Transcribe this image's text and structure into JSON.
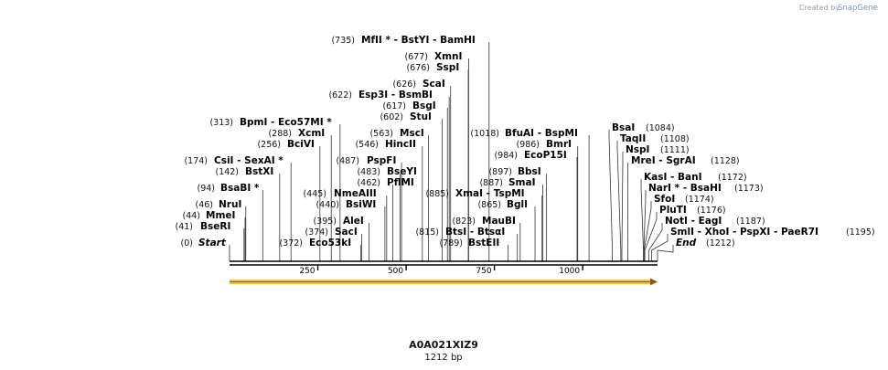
{
  "credit": {
    "prefix": "Created by",
    "brand": "SnapGene"
  },
  "sequence": {
    "name": "A0A021XIZ9",
    "length_label": "1212 bp",
    "length": 1212
  },
  "axis": {
    "ticks": [
      250,
      500,
      750,
      1000
    ]
  },
  "left_features": [
    {
      "pos": "(0)",
      "label": "Start",
      "bp": 0,
      "italic": true
    },
    {
      "pos": "(41)",
      "label": "BseRI",
      "bp": 41
    },
    {
      "pos": "(44)",
      "label": "MmeI",
      "bp": 44
    },
    {
      "pos": "(46)",
      "label": "NruI",
      "bp": 46
    },
    {
      "pos": "(94)",
      "label": "BsaBI *",
      "bp": 94
    },
    {
      "pos": "(142)",
      "label": "BstXI",
      "bp": 142
    },
    {
      "pos": "(174)",
      "label": "CsiI   - SexAI *",
      "bp": 174
    },
    {
      "pos": "(256)",
      "label": "BciVI",
      "bp": 256
    },
    {
      "pos": "(288)",
      "label": "XcmI",
      "bp": 288
    },
    {
      "pos": "(313)",
      "label": "BpmI   - Eco57MI *",
      "bp": 313
    },
    {
      "pos": "(372)",
      "label": "Eco53kI",
      "bp": 372
    },
    {
      "pos": "(374)",
      "label": "SacI",
      "bp": 374
    },
    {
      "pos": "(395)",
      "label": "AleI",
      "bp": 395
    },
    {
      "pos": "(440)",
      "label": "BsiWI",
      "bp": 440
    },
    {
      "pos": "(445)",
      "label": "NmeAIII",
      "bp": 445
    },
    {
      "pos": "(462)",
      "label": "PflMI",
      "bp": 462
    },
    {
      "pos": "(483)",
      "label": "BseYI",
      "bp": 483
    },
    {
      "pos": "(487)",
      "label": "PspFI",
      "bp": 487
    },
    {
      "pos": "(546)",
      "label": "HincII",
      "bp": 546
    },
    {
      "pos": "(563)",
      "label": "MscI",
      "bp": 563
    },
    {
      "pos": "(602)",
      "label": "StuI",
      "bp": 602
    },
    {
      "pos": "(617)",
      "label": "BsgI",
      "bp": 617
    },
    {
      "pos": "(622)",
      "label": "Esp3I   - BsmBI",
      "bp": 622
    },
    {
      "pos": "(626)",
      "label": "ScaI",
      "bp": 626
    },
    {
      "pos": "(676)",
      "label": "SspI",
      "bp": 676
    },
    {
      "pos": "(677)",
      "label": "XmnI",
      "bp": 677
    },
    {
      "pos": "(735)",
      "label": "MfII *  - BstYI    - BamHI",
      "bp": 735
    }
  ],
  "right_features": [
    {
      "pos": "(789)",
      "label": "BstEII",
      "bp": 789
    },
    {
      "pos": "(815)",
      "label": "BtsI   - BtsαI",
      "bp": 815
    },
    {
      "pos": "(823)",
      "label": "MauBI",
      "bp": 823
    },
    {
      "pos": "(865)",
      "label": "BglI",
      "bp": 865
    },
    {
      "pos": "(885)",
      "label": "XmaI   - TspMI",
      "bp": 885
    },
    {
      "pos": "(887)",
      "label": "SmaI",
      "bp": 887
    },
    {
      "pos": "(897)",
      "label": "BbsI",
      "bp": 897
    },
    {
      "pos": "(984)",
      "label": "EcoP15I",
      "bp": 984
    },
    {
      "pos": "(986)",
      "label": "BmrI",
      "bp": 986
    },
    {
      "pos": "(1018)",
      "label": "BfuAI   - BspMI",
      "bp": 1018
    }
  ],
  "far_features": [
    {
      "label": "BsaI",
      "pos": "(1084)",
      "bp": 1084
    },
    {
      "label": "TaqII",
      "pos": "(1108)",
      "bp": 1108
    },
    {
      "label": "NspI",
      "pos": "(1111)",
      "bp": 1111
    },
    {
      "label": "MreI   - SgrAI",
      "pos": "(1128)",
      "bp": 1128
    },
    {
      "label": "KasI   - BanI",
      "pos": "(1172)",
      "bp": 1172
    },
    {
      "label": "NarI *  - BsaHI",
      "pos": "(1173)",
      "bp": 1173
    },
    {
      "label": "SfoI",
      "pos": "(1174)",
      "bp": 1174
    },
    {
      "label": "PluTI",
      "pos": "(1176)",
      "bp": 1176
    },
    {
      "label": "NotI   - EagI",
      "pos": "(1187)",
      "bp": 1187
    },
    {
      "label": "SmlI   - XhoI    - PspXI    - PaeR7I",
      "pos": "(1195)",
      "bp": 1195
    },
    {
      "label": "End",
      "pos": "(1212)",
      "bp": 1212,
      "italic": true
    }
  ],
  "feature_arrow": {
    "color": "#f2c24a",
    "edge": "#8a5a1a"
  }
}
